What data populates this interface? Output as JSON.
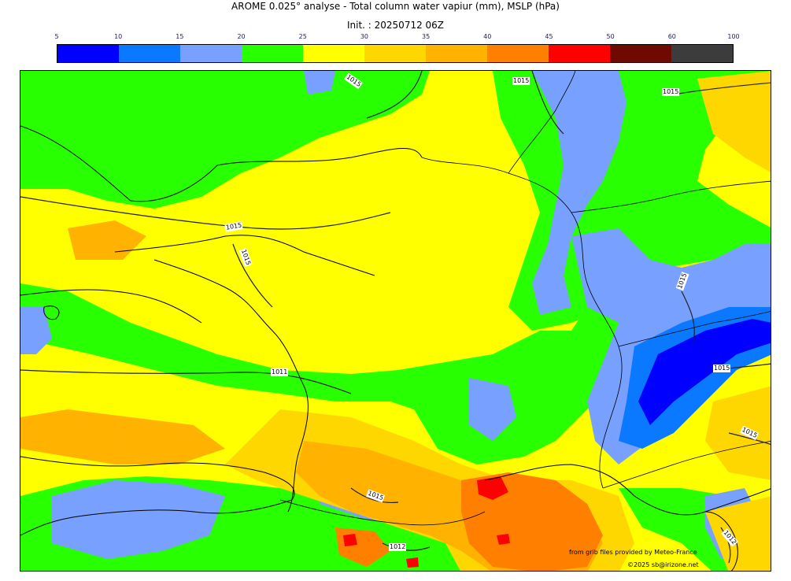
{
  "title": "AROME 0.025° analyse - Total column water vapiur (mm), MSLP (hPa)",
  "init": "Init. : 20250712 06Z",
  "colorbar": {
    "ticks": [
      "5",
      "10",
      "15",
      "20",
      "25",
      "30",
      "35",
      "40",
      "45",
      "50",
      "60",
      "100"
    ],
    "colors": [
      "#0000ff",
      "#0a78ff",
      "#78a0ff",
      "#28ff00",
      "#ffff00",
      "#ffd700",
      "#ffb300",
      "#ff8000",
      "#ff0000",
      "#6e0a00",
      "#3c3c3c"
    ]
  },
  "map": {
    "isobar_labels": [
      "1015",
      "1015",
      "1015",
      "1015",
      "1015",
      "1011",
      "1015",
      "1012",
      "1015",
      "1015",
      "1012",
      "1015"
    ]
  },
  "credits": {
    "source": "from grib files provided by Meteo-France",
    "copyright": "©2025 sb@irizone.net"
  }
}
